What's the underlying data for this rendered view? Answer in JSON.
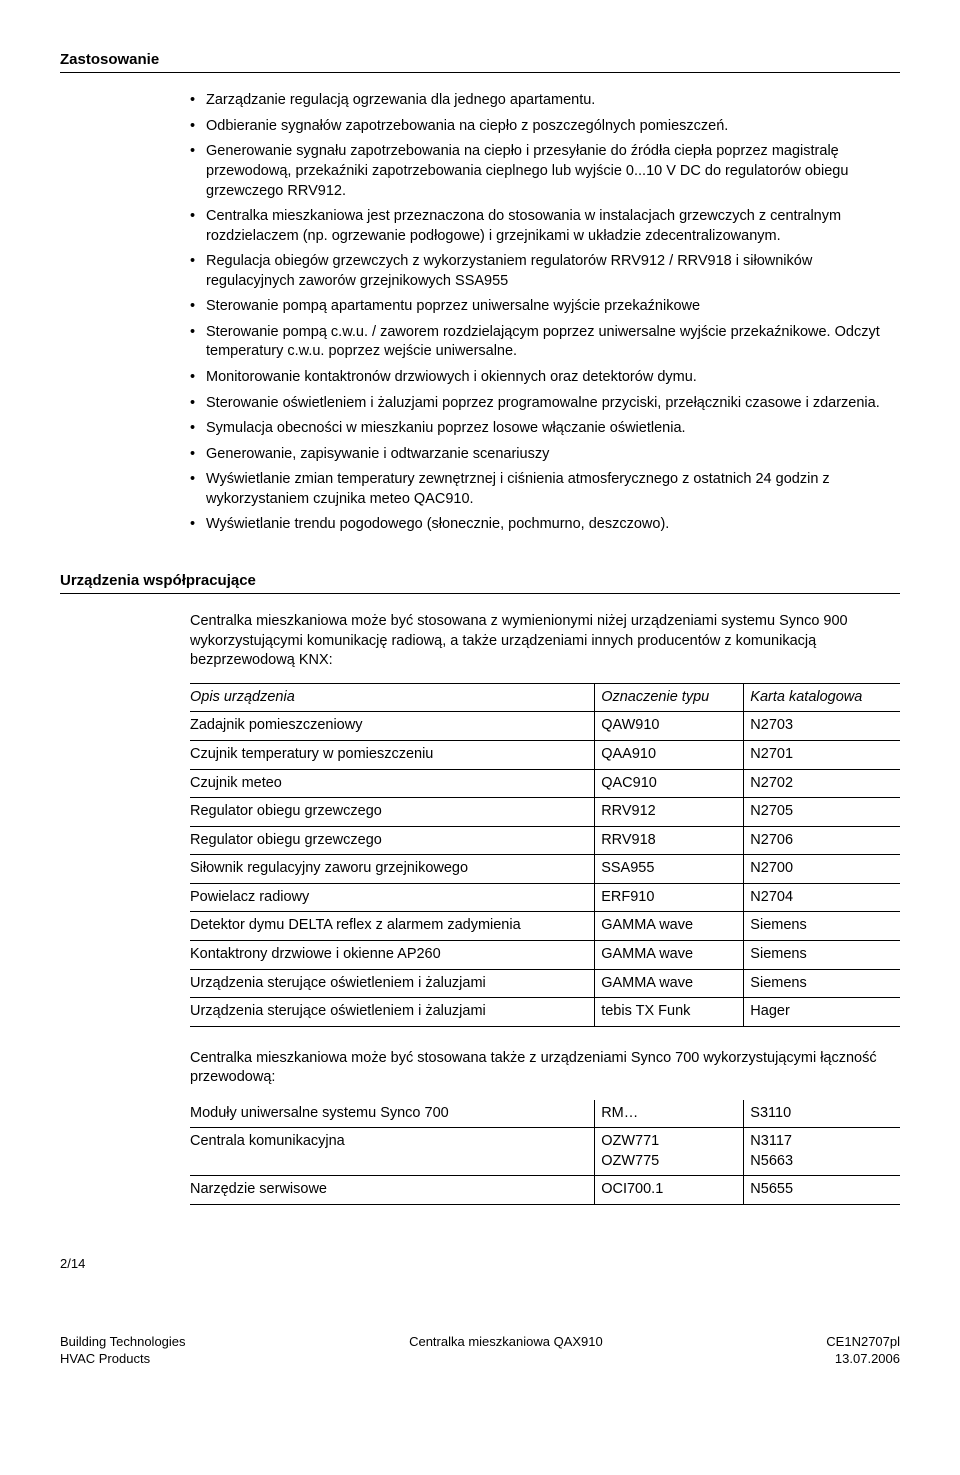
{
  "section1": {
    "title": "Zastosowanie",
    "bullets": [
      "Zarządzanie regulacją ogrzewania dla jednego apartamentu.",
      "Odbieranie sygnałów zapotrzebowania na ciepło z poszczególnych pomieszczeń.",
      "Generowanie sygnału zapotrzebowania na ciepło i przesyłanie do źródła ciepła poprzez magistralę przewodową, przekaźniki zapotrzebowania cieplnego lub wyjście 0...10 V DC do regulatorów obiegu grzewczego RRV912.",
      "Centralka mieszkaniowa jest przeznaczona do stosowania w instalacjach grzewczych z centralnym rozdzielaczem (np. ogrzewanie podłogowe) i grzejnikami w układzie zdecentralizowanym.",
      "Regulacja obiegów grzewczych z wykorzystaniem regulatorów RRV912 / RRV918 i siłowników regulacyjnych zaworów grzejnikowych SSA955",
      "Sterowanie pompą apartamentu poprzez uniwersalne wyjście przekaźnikowe",
      "Sterowanie pompą c.w.u. / zaworem rozdzielającym poprzez uniwersalne wyjście przekaźnikowe. Odczyt temperatury c.w.u. poprzez wejście uniwersalne.",
      "Monitorowanie kontaktronów drzwiowych i okiennych oraz detektorów dymu.",
      "Sterowanie oświetleniem i żaluzjami poprzez programowalne przyciski, przełączniki czasowe i zdarzenia.",
      "Symulacja obecności w mieszkaniu poprzez losowe włączanie oświetlenia.",
      "Generowanie, zapisywanie i odtwarzanie scenariuszy",
      "Wyświetlanie zmian temperatury zewnętrznej i ciśnienia atmosferycznego z ostatnich 24 godzin z wykorzystaniem czujnika meteo QAC910.",
      "Wyświetlanie trendu pogodowego (słonecznie, pochmurno, deszczowo)."
    ]
  },
  "section2": {
    "title": "Urządzenia współpracujące",
    "intro1": "Centralka mieszkaniowa może być stosowana z wymienionymi niżej urządzeniami systemu Synco 900 wykorzystującymi komunikację radiową, a także urządzeniami innych producentów z komunikacją bezprzewodową KNX:",
    "headers": {
      "c1": "Opis urządzenia",
      "c2": "Oznaczenie typu",
      "c3": "Karta katalogowa"
    },
    "rows1": [
      [
        "Zadajnik pomieszczeniowy",
        "QAW910",
        "N2703"
      ],
      [
        "Czujnik temperatury w pomieszczeniu",
        "QAA910",
        "N2701"
      ],
      [
        "Czujnik meteo",
        "QAC910",
        "N2702"
      ],
      [
        "Regulator obiegu grzewczego",
        "RRV912",
        "N2705"
      ],
      [
        "Regulator obiegu grzewczego",
        "RRV918",
        "N2706"
      ],
      [
        "Siłownik regulacyjny zaworu grzejnikowego",
        "SSA955",
        "N2700"
      ],
      [
        "Powielacz radiowy",
        "ERF910",
        "N2704"
      ],
      [
        "Detektor dymu DELTA reflex z alarmem zadymienia",
        "GAMMA wave",
        "Siemens"
      ],
      [
        "Kontaktrony drzwiowe i okienne AP260",
        "GAMMA wave",
        "Siemens"
      ],
      [
        "Urządzenia sterujące oświetleniem i żaluzjami",
        "GAMMA wave",
        "Siemens"
      ],
      [
        "Urządzenia sterujące oświetleniem i żaluzjami",
        "tebis TX Funk",
        "Hager"
      ]
    ],
    "intro2": "Centralka mieszkaniowa może być stosowana także z urządzeniami Synco 700 wykorzystującymi łączność przewodową:",
    "rows2": [
      [
        "Moduły uniwersalne systemu Synco 700",
        "RM…",
        "S3110"
      ],
      [
        "Centrala komunikacyjna",
        "OZW771\nOZW775",
        "N3117\nN5663"
      ],
      [
        "Narzędzie serwisowe",
        "OCI700.1",
        "N5655"
      ]
    ]
  },
  "footer": {
    "page": "2/14",
    "left1": "Building Technologies",
    "left2": "HVAC Products",
    "center": "Centralka mieszkaniowa QAX910",
    "right1": "CE1N2707pl",
    "right2": "13.07.2006"
  }
}
